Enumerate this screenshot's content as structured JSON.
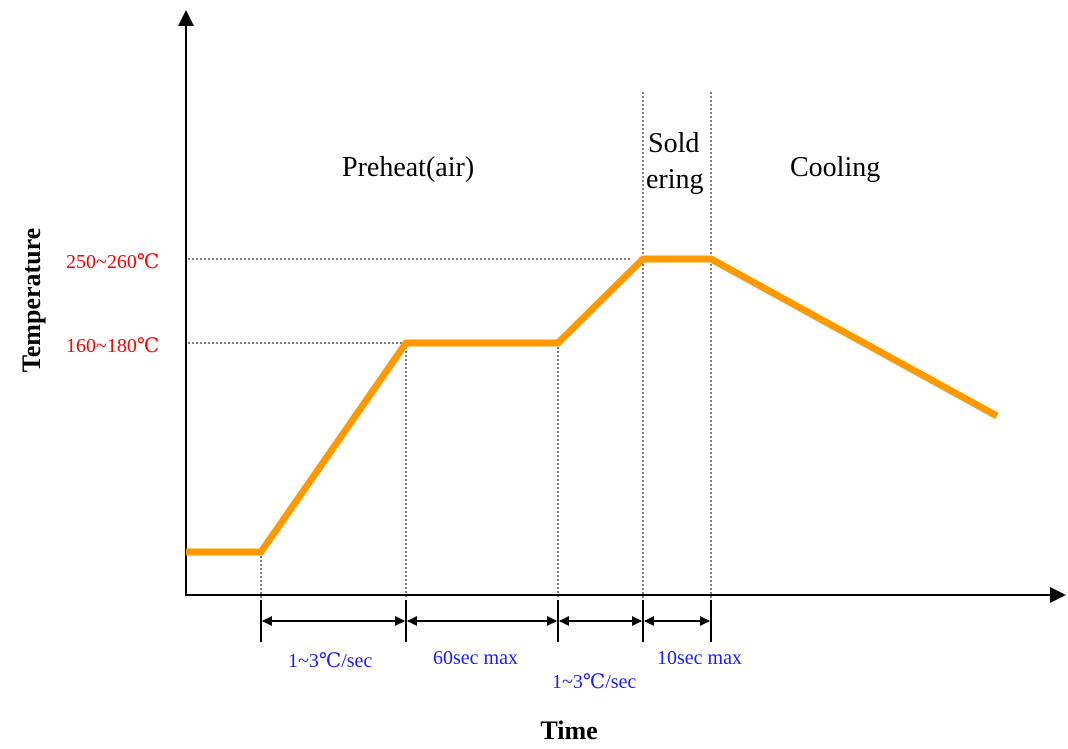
{
  "axes": {
    "x_label": "Time",
    "y_label": "Temperature"
  },
  "temperature_levels": [
    {
      "label": "250~260℃"
    },
    {
      "label": "160~180℃"
    }
  ],
  "zones": [
    {
      "label": "Preheat(air)"
    },
    {
      "label_line1": "Sold",
      "label_line2": "ering"
    },
    {
      "label": "Cooling"
    }
  ],
  "intervals": [
    {
      "label": "1~3℃/sec"
    },
    {
      "label": "60sec max"
    },
    {
      "label": "1~3℃/sec"
    },
    {
      "label": "10sec max"
    }
  ],
  "colors": {
    "profile": "#ff9900",
    "temperature_label": "#ff0000",
    "interval_label": "#1a1aff"
  }
}
